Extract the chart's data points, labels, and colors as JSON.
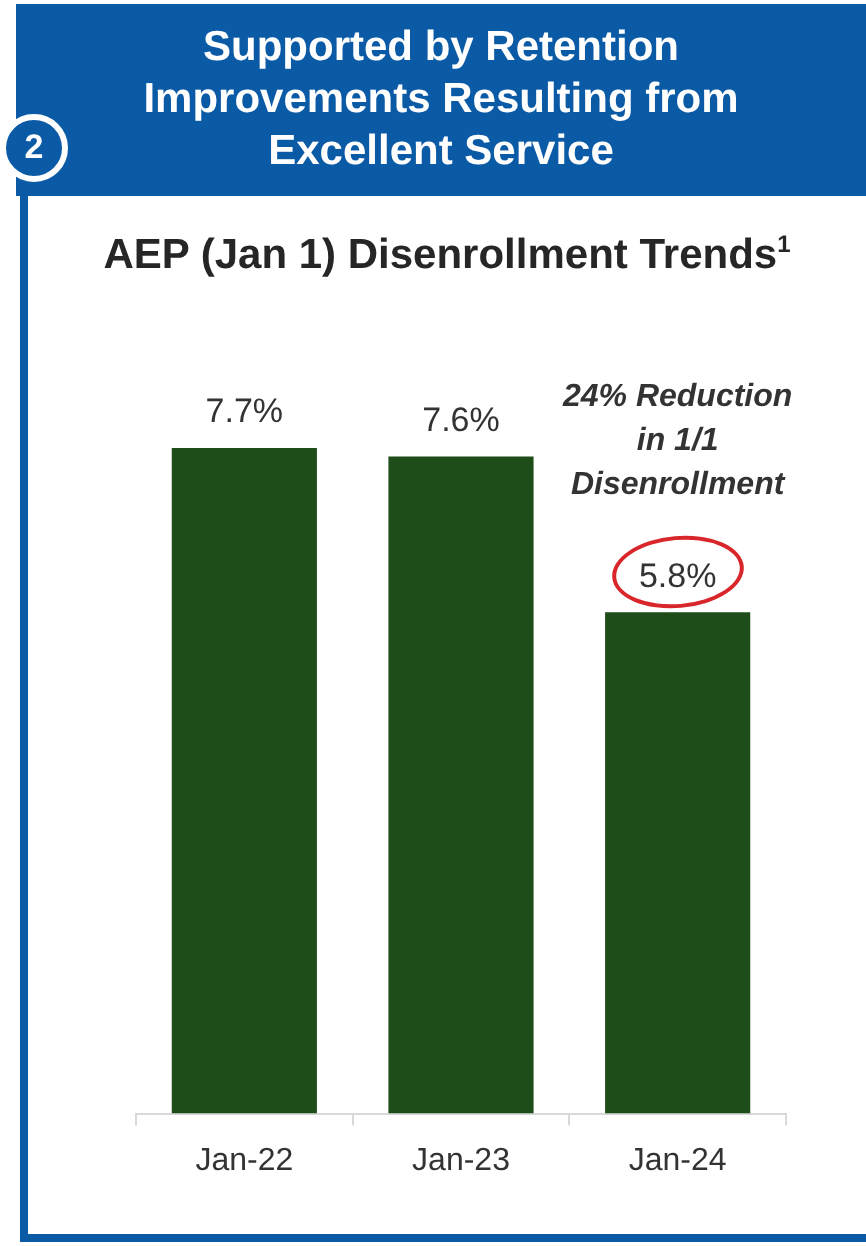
{
  "chart_data": {
    "type": "bar",
    "title": "Supported by Retention Improvements Resulting from Excellent Service",
    "subtitle": "AEP (Jan 1) Disenrollment Trends$^{1}$",
    "categories": [
      "Jan-22",
      "Jan-23",
      "Jan-24"
    ],
    "values": [
      7.7,
      7.6,
      5.8
    ],
    "value_labels": [
      "7.7%",
      "7.6%",
      "5.8%"
    ],
    "color": "#1e4d1a",
    "annotations": [
      "2",
      "24% Reduction in 1/1 Disenrollment"
    ]
  }
}
